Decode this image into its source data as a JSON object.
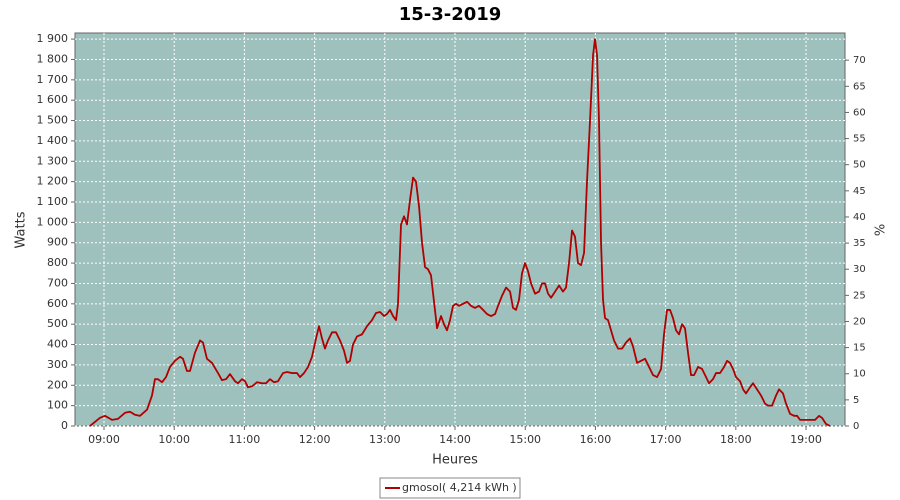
{
  "chart_data": {
    "type": "line",
    "title": "15-3-2019",
    "x_label": "Heures",
    "y_label": "Watts",
    "y2_label": "%",
    "xlim": [
      8.587,
      19.555
    ],
    "xticks": [
      {
        "value": 9,
        "label": "09:00"
      },
      {
        "value": 10,
        "label": "10:00"
      },
      {
        "value": 11,
        "label": "11:00"
      },
      {
        "value": 12,
        "label": "12:00"
      },
      {
        "value": 13,
        "label": "13:00"
      },
      {
        "value": 14,
        "label": "14:00"
      },
      {
        "value": 15,
        "label": "15:00"
      },
      {
        "value": 16,
        "label": "16:00"
      },
      {
        "value": 17,
        "label": "17:00"
      },
      {
        "value": 18,
        "label": "18:00"
      },
      {
        "value": 19,
        "label": "19:00"
      }
    ],
    "ylim": [
      0,
      1930
    ],
    "yticks": [
      0,
      100,
      200,
      300,
      400,
      500,
      600,
      700,
      800,
      900,
      {
        "value": 1000,
        "label": "1 000"
      },
      {
        "value": 1100,
        "label": "1 100"
      },
      {
        "value": 1200,
        "label": "1 200"
      },
      {
        "value": 1300,
        "label": "1 300"
      },
      {
        "value": 1400,
        "label": "1 400"
      },
      {
        "value": 1500,
        "label": "1 500"
      },
      {
        "value": 1600,
        "label": "1 600"
      },
      {
        "value": 1700,
        "label": "1 700"
      },
      {
        "value": 1800,
        "label": "1 800"
      },
      {
        "value": 1900,
        "label": "1 900"
      }
    ],
    "y2lim": [
      0,
      75.2
    ],
    "y2ticks": [
      0,
      5,
      10,
      15,
      20,
      25,
      30,
      35,
      40,
      45,
      50,
      55,
      60,
      65,
      70
    ],
    "grid": true,
    "plot_background": "#9fc1be",
    "x": [
      8.8,
      8.943,
      9.014,
      9.114,
      9.199,
      9.299,
      9.37,
      9.442,
      9.513,
      9.613,
      9.684,
      9.726,
      9.769,
      9.826,
      9.883,
      9.94,
      10.011,
      10.083,
      10.125,
      10.182,
      10.225,
      10.296,
      10.368,
      10.41,
      10.467,
      10.538,
      10.624,
      10.681,
      10.738,
      10.795,
      10.866,
      10.909,
      10.966,
      11.009,
      11.051,
      11.108,
      11.18,
      11.251,
      11.308,
      11.365,
      11.422,
      11.479,
      11.55,
      11.607,
      11.678,
      11.749,
      11.792,
      11.849,
      11.906,
      11.963,
      12.02,
      12.063,
      12.105,
      12.148,
      12.191,
      12.248,
      12.305,
      12.362,
      12.419,
      12.462,
      12.504,
      12.547,
      12.604,
      12.675,
      12.746,
      12.818,
      12.875,
      12.932,
      12.989,
      13.031,
      13.074,
      13.117,
      13.16,
      13.188,
      13.231,
      13.274,
      13.316,
      13.359,
      13.402,
      13.444,
      13.487,
      13.53,
      13.573,
      13.615,
      13.658,
      13.701,
      13.744,
      13.801,
      13.843,
      13.886,
      13.929,
      13.972,
      14.014,
      14.057,
      14.114,
      14.171,
      14.228,
      14.285,
      14.342,
      14.399,
      14.456,
      14.513,
      14.57,
      14.613,
      14.67,
      14.727,
      14.784,
      14.826,
      14.869,
      14.912,
      14.954,
      14.997,
      15.04,
      15.083,
      15.14,
      15.197,
      15.239,
      15.282,
      15.325,
      15.368,
      15.425,
      15.482,
      15.538,
      15.581,
      15.624,
      15.667,
      15.709,
      15.752,
      15.795,
      15.838,
      15.88,
      15.923,
      15.966,
      15.994,
      16.023,
      16.051,
      16.08,
      16.108,
      16.137,
      16.18,
      16.222,
      16.265,
      16.322,
      16.379,
      16.436,
      16.493,
      16.536,
      16.593,
      16.65,
      16.707,
      16.764,
      16.821,
      16.878,
      16.935,
      16.977,
      17.02,
      17.063,
      17.105,
      17.148,
      17.191,
      17.234,
      17.276,
      17.319,
      17.362,
      17.405,
      17.462,
      17.519,
      17.576,
      17.618,
      17.675,
      17.718,
      17.775,
      17.832,
      17.875,
      17.917,
      17.96,
      18.003,
      18.06,
      18.103,
      18.145,
      18.202,
      18.245,
      18.302,
      18.359,
      18.416,
      18.459,
      18.516,
      18.573,
      18.615,
      18.672,
      18.715,
      18.772,
      18.829,
      18.872,
      18.915,
      18.986,
      19.057,
      19.128,
      19.185,
      19.228,
      19.285,
      19.342
    ],
    "series": [
      {
        "name": "gmosol( 4,214 kWh )",
        "color": "#b00000",
        "values": [
          0,
          40,
          50,
          30,
          35,
          65,
          70,
          55,
          50,
          80,
          150,
          230,
          230,
          215,
          240,
          290,
          320,
          340,
          330,
          270,
          270,
          360,
          420,
          410,
          330,
          310,
          260,
          225,
          230,
          255,
          220,
          210,
          230,
          220,
          190,
          195,
          215,
          210,
          210,
          230,
          215,
          220,
          260,
          265,
          260,
          260,
          240,
          260,
          290,
          340,
          430,
          490,
          430,
          380,
          420,
          460,
          460,
          420,
          370,
          310,
          320,
          400,
          440,
          450,
          490,
          520,
          555,
          560,
          540,
          550,
          570,
          540,
          520,
          600,
          990,
          1030,
          990,
          1110,
          1220,
          1200,
          1080,
          900,
          780,
          770,
          740,
          610,
          480,
          540,
          500,
          470,
          520,
          590,
          600,
          590,
          600,
          610,
          590,
          580,
          590,
          570,
          550,
          540,
          550,
          590,
          640,
          680,
          660,
          580,
          570,
          620,
          750,
          800,
          760,
          700,
          650,
          660,
          700,
          700,
          650,
          630,
          660,
          690,
          660,
          680,
          800,
          960,
          930,
          800,
          790,
          850,
          1200,
          1500,
          1820,
          1900,
          1820,
          1500,
          900,
          620,
          530,
          520,
          470,
          420,
          380,
          380,
          410,
          430,
          390,
          310,
          320,
          330,
          290,
          250,
          240,
          280,
          450,
          570,
          570,
          530,
          470,
          450,
          500,
          480,
          360,
          250,
          250,
          290,
          280,
          240,
          210,
          230,
          260,
          260,
          290,
          320,
          310,
          280,
          240,
          220,
          180,
          160,
          190,
          210,
          180,
          150,
          110,
          100,
          100,
          150,
          180,
          160,
          110,
          60,
          50,
          50,
          30,
          30,
          30,
          30,
          50,
          40,
          10,
          0
        ]
      }
    ]
  }
}
